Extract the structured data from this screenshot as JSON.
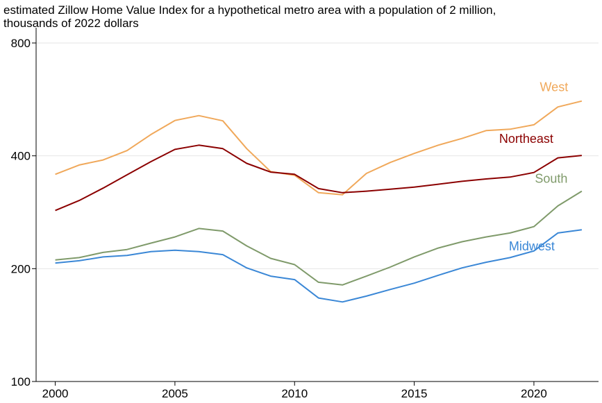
{
  "chart_data": {
    "type": "line",
    "title_lines": [
      "estimated Zillow Home Value Index for a hypothetical metro area with a population of 2 million,",
      "thousands of 2022 dollars"
    ],
    "xlabel": "",
    "ylabel": "",
    "scale_y": "log",
    "x": [
      2000,
      2001,
      2002,
      2003,
      2004,
      2005,
      2006,
      2007,
      2008,
      2009,
      2010,
      2011,
      2012,
      2013,
      2014,
      2015,
      2016,
      2017,
      2018,
      2019,
      2020,
      2021,
      2022
    ],
    "xlim": [
      1999.2,
      2022.7
    ],
    "ylim": [
      100,
      860
    ],
    "x_ticks": [
      2000,
      2005,
      2010,
      2015,
      2020
    ],
    "y_ticks": [
      100,
      200,
      400,
      800
    ],
    "grid": "horizontal",
    "legend": "inline-labels",
    "series": [
      {
        "name": "West",
        "color": "#f0a85a",
        "values": [
          357,
          378,
          390,
          413,
          456,
          497,
          512,
          496,
          418,
          363,
          355,
          319,
          315,
          359,
          384,
          406,
          427,
          445,
          467,
          471,
          484,
          540,
          560
        ]
      },
      {
        "name": "Northeast",
        "color": "#8b0000",
        "values": [
          286,
          304,
          328,
          356,
          386,
          416,
          427,
          418,
          382,
          362,
          357,
          327,
          319,
          322,
          326,
          330,
          336,
          342,
          347,
          351,
          361,
          395,
          401
        ]
      },
      {
        "name": "South",
        "color": "#7f9a6a",
        "values": [
          211,
          214,
          221,
          225,
          234,
          243,
          256,
          252,
          230,
          213,
          205,
          184,
          181,
          191,
          202,
          215,
          227,
          236,
          243,
          249,
          259,
          294,
          322
        ]
      },
      {
        "name": "Midwest",
        "color": "#3a87d6",
        "values": [
          207,
          210,
          215,
          217,
          222,
          224,
          222,
          218,
          201,
          191,
          187,
          167,
          163,
          169,
          176,
          183,
          192,
          201,
          208,
          214,
          223,
          249,
          254
        ]
      }
    ]
  }
}
